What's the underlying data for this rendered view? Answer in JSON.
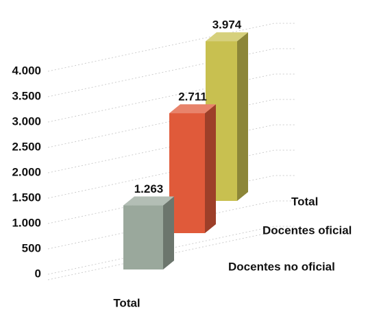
{
  "chart_data": {
    "type": "bar",
    "categories": [
      "Total"
    ],
    "series": [
      {
        "name": "Docentes no oficial",
        "color": "#9aa89c",
        "values": [
          1263
        ],
        "value_labels": [
          "1.263"
        ]
      },
      {
        "name": "Docentes oficial",
        "color": "#e05a3a",
        "values": [
          2711
        ],
        "value_labels": [
          "2.711"
        ]
      },
      {
        "name": "Total",
        "color": "#c8c050",
        "values": [
          3974
        ],
        "value_labels": [
          "3.974"
        ]
      }
    ],
    "ylim": [
      0,
      4000
    ],
    "yticks": [
      {
        "value": 0,
        "label": "0"
      },
      {
        "value": 500,
        "label": "500"
      },
      {
        "value": 1000,
        "label": "1.000"
      },
      {
        "value": 1500,
        "label": "1.500"
      },
      {
        "value": 2000,
        "label": "2.000"
      },
      {
        "value": 2500,
        "label": "2.500"
      },
      {
        "value": 3000,
        "label": "3.000"
      },
      {
        "value": 3500,
        "label": "3.500"
      },
      {
        "value": 4000,
        "label": "4.000"
      }
    ],
    "grid": true
  }
}
